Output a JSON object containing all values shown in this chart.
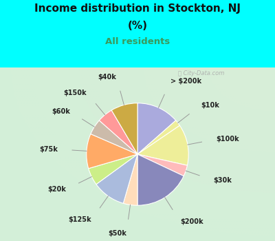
{
  "title_line1": "Income distribution in Stockton, NJ",
  "title_line2": "(%)",
  "subtitle": "All residents",
  "bg_outer": "#00FFFF",
  "title_color": "#111111",
  "subtitle_color": "#3a9a5c",
  "labels": [
    "> $200k",
    "$10k",
    "$100k",
    "$30k",
    "$200k",
    "$50k",
    "$125k",
    "$20k",
    "$75k",
    "$60k",
    "$150k",
    "$40k"
  ],
  "values": [
    13.5,
    2.0,
    13.0,
    3.5,
    18.0,
    4.5,
    10.5,
    5.5,
    11.0,
    5.0,
    5.0,
    8.5
  ],
  "colors": [
    "#aaaadd",
    "#eeee99",
    "#eeee99",
    "#ffbbbb",
    "#8888bb",
    "#ffddbb",
    "#aabbdd",
    "#ccee88",
    "#ffaa66",
    "#ccbbaa",
    "#ff9999",
    "#ccaa44"
  ],
  "startangle": 90,
  "watermark": "ⓘ City-Data.com",
  "label_fontsize": 7.0
}
